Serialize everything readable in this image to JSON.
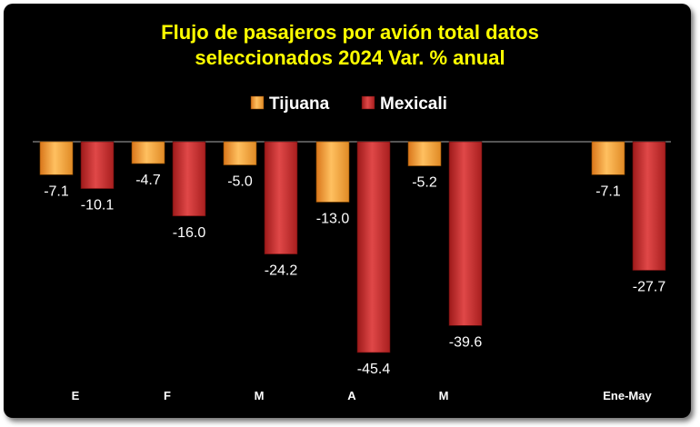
{
  "chart_data": {
    "type": "bar",
    "title_lines": [
      "Flujo de pasajeros por avión total datos",
      "seleccionados 2024 Var. % anual"
    ],
    "categories": [
      "E",
      "F",
      "M",
      "A",
      "M",
      "Ene-May"
    ],
    "series": [
      {
        "name": "Tijuana",
        "values": [
          -7.1,
          -4.7,
          -5.0,
          -13.0,
          -5.2,
          -7.1
        ],
        "color": "#f4a030"
      },
      {
        "name": "Mexicali",
        "values": [
          -10.1,
          -16.0,
          -24.2,
          -45.4,
          -39.6,
          -27.7
        ],
        "color": "#c62828"
      }
    ],
    "value_labels": {
      "Tijuana": [
        "-7.1",
        "-4.7",
        "-5.0",
        "-13.0",
        "-5.2",
        "-7.1"
      ],
      "Mexicali": [
        "-10.1",
        "-16.0",
        "-24.2",
        "-45.4",
        "-39.6",
        "-27.7"
      ]
    },
    "ylim": [
      -50,
      0
    ],
    "legend_position": "top",
    "grid": false,
    "background": "#000000",
    "title_color": "#ffff00"
  }
}
